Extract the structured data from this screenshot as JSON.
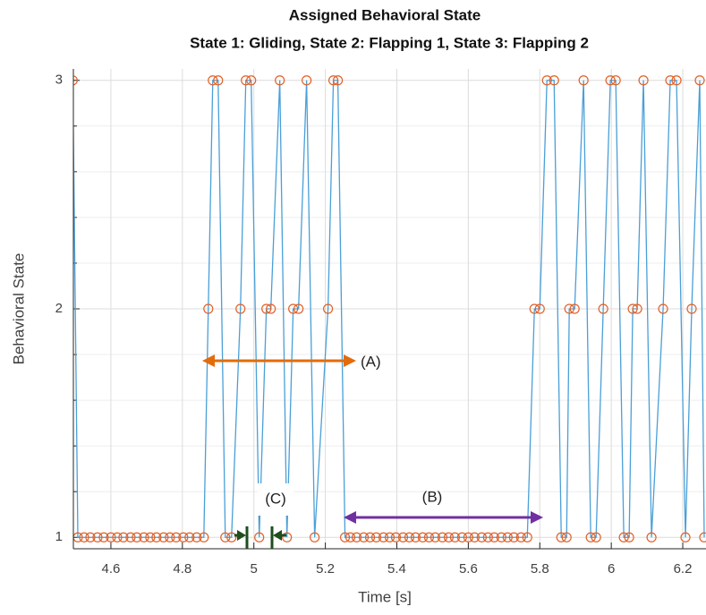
{
  "chart_data": {
    "type": "line",
    "title": "Assigned Behavioral State",
    "subtitle": "State 1: Gliding, State 2: Flapping 1, State 3: Flapping 2",
    "x_label": "Time [s]",
    "y_label": "Behavioral State",
    "x": [
      4.4933,
      4.5075,
      4.525,
      4.5425,
      4.5625,
      4.58,
      4.6,
      4.6175,
      4.635,
      4.655,
      4.6725,
      4.6925,
      4.71,
      4.7275,
      4.7475,
      4.765,
      4.7825,
      4.8025,
      4.82,
      4.84,
      4.86,
      4.8725,
      4.885,
      4.9,
      4.92,
      4.9375,
      4.9625,
      4.9775,
      4.9925,
      5.015,
      5.035,
      5.0475,
      5.0725,
      5.0925,
      5.11,
      5.125,
      5.1475,
      5.17,
      5.2075,
      5.2225,
      5.235,
      5.255,
      5.27,
      5.2875,
      5.3075,
      5.325,
      5.3425,
      5.3625,
      5.38,
      5.3975,
      5.4175,
      5.435,
      5.4525,
      5.4725,
      5.49,
      5.5075,
      5.5275,
      5.545,
      5.5625,
      5.5825,
      5.6,
      5.6175,
      5.6375,
      5.655,
      5.6725,
      5.6925,
      5.71,
      5.7275,
      5.7475,
      5.765,
      5.785,
      5.8,
      5.82,
      5.84,
      5.86,
      5.875,
      5.8825,
      5.8975,
      5.9225,
      5.9425,
      5.9575,
      5.9775,
      5.9975,
      6.0125,
      6.035,
      6.05,
      6.06,
      6.0725,
      6.09,
      6.1125,
      6.145,
      6.165,
      6.1825,
      6.2075,
      6.225,
      6.2475,
      6.26
    ],
    "series": [
      {
        "name": "state",
        "color": "#4a9fd8",
        "marker_color": "#e0622a",
        "values": [
          3,
          1,
          1,
          1,
          1,
          1,
          1,
          1,
          1,
          1,
          1,
          1,
          1,
          1,
          1,
          1,
          1,
          1,
          1,
          1,
          1,
          2,
          3,
          3,
          1,
          1,
          2,
          3,
          3,
          1,
          2,
          2,
          3,
          1,
          2,
          2,
          3,
          1,
          2,
          3,
          3,
          1,
          1,
          1,
          1,
          1,
          1,
          1,
          1,
          1,
          1,
          1,
          1,
          1,
          1,
          1,
          1,
          1,
          1,
          1,
          1,
          1,
          1,
          1,
          1,
          1,
          1,
          1,
          1,
          1,
          2,
          2,
          3,
          3,
          1,
          1,
          2,
          2,
          3,
          1,
          1,
          2,
          3,
          3,
          1,
          1,
          2,
          2,
          3,
          1,
          2,
          3,
          3,
          1,
          2,
          3,
          1
        ]
      }
    ],
    "xlim": [
      4.495,
      6.265
    ],
    "ylim": [
      0.95,
      3.05
    ],
    "xticks": [
      4.6,
      4.8,
      5,
      5.2,
      5.4,
      5.6,
      5.8,
      6,
      6.2
    ],
    "yticks": [
      1,
      2,
      3
    ],
    "grid": true,
    "minor_grid": true,
    "annotations": [
      "(A)",
      "(B)",
      "(C)"
    ]
  }
}
